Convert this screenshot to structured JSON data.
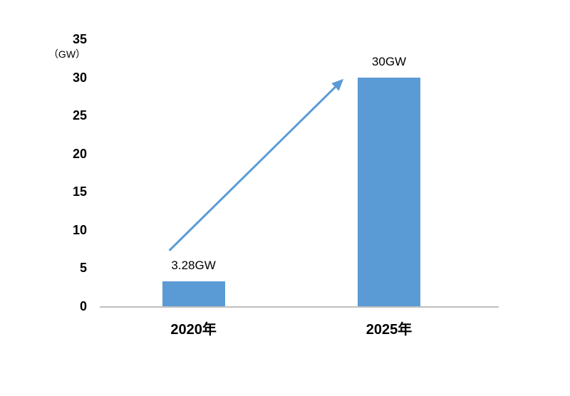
{
  "chart_data": {
    "type": "bar",
    "title": "",
    "categories": [
      "2020年",
      "2025年"
    ],
    "values": [
      3.28,
      30
    ],
    "data_labels": [
      "3.28GW",
      "30GW"
    ],
    "unit_label": "（GW）",
    "xlabel": "",
    "ylabel": "GW",
    "yticks": [
      0,
      5,
      10,
      15,
      20,
      25,
      30,
      35
    ],
    "ylim": [
      0,
      35
    ],
    "grid": false,
    "legend": false,
    "bar_color": "#5B9BD5",
    "arrow_color": "#5B9BD5",
    "annotations": [
      {
        "type": "arrow",
        "from_category": "2020年",
        "to_category": "2025年",
        "meaning": "growth from 3.28GW to 30GW"
      }
    ]
  }
}
